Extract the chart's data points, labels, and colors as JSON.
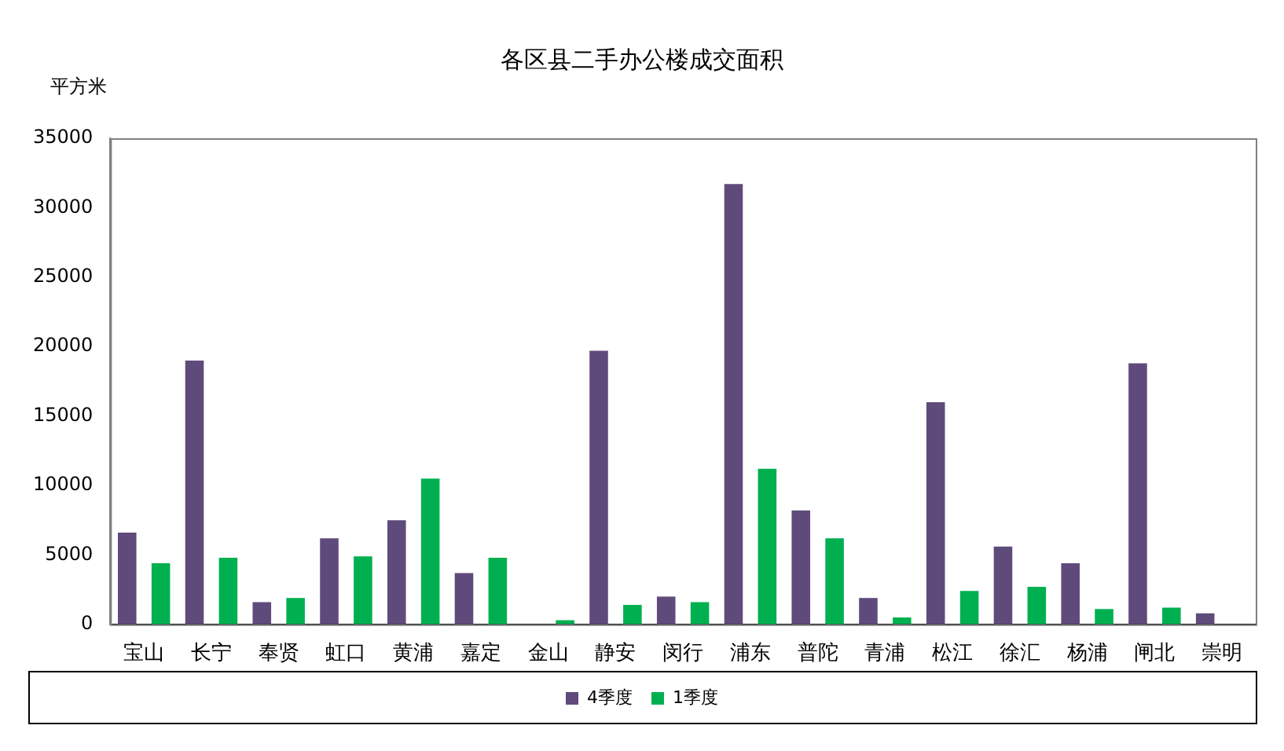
{
  "chart_data": {
    "type": "bar",
    "title": "各区县二手办公楼成交面积",
    "ylabel": "平方米",
    "categories": [
      "宝山",
      "长宁",
      "奉贤",
      "虹口",
      "黄浦",
      "嘉定",
      "金山",
      "静安",
      "闵行",
      "浦东",
      "普陀",
      "青浦",
      "松江",
      "徐汇",
      "杨浦",
      "闸北",
      "崇明"
    ],
    "series": [
      {
        "name": "4季度",
        "color": "#5f4b7b",
        "values": [
          6600,
          19000,
          1600,
          6200,
          7500,
          3700,
          0,
          19700,
          2000,
          31700,
          8200,
          1900,
          16000,
          5600,
          4400,
          18800,
          800
        ]
      },
      {
        "name": "1季度",
        "color": "#00b050",
        "values": [
          4400,
          4800,
          1900,
          4900,
          10500,
          4800,
          300,
          1400,
          1600,
          11200,
          6200,
          500,
          2400,
          2700,
          1100,
          1200,
          0
        ]
      }
    ],
    "ylim": [
      0,
      35000
    ],
    "yticks": [
      0,
      5000,
      10000,
      15000,
      20000,
      25000,
      30000,
      35000
    ],
    "grid": false,
    "legend": "bottom"
  }
}
